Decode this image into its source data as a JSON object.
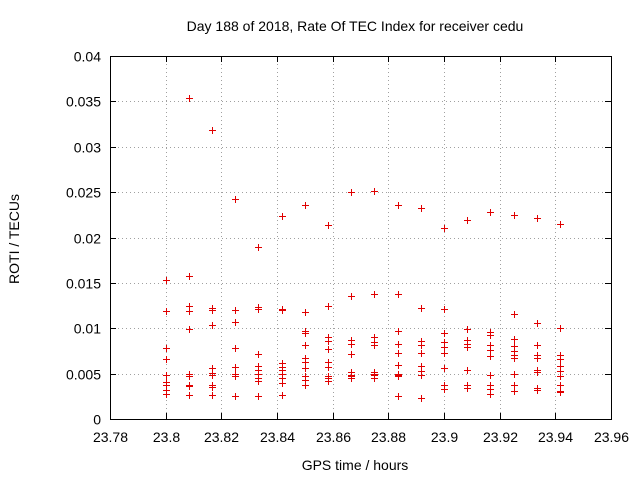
{
  "chart_data": {
    "type": "scatter",
    "title": "Day 188 of 2018, Rate Of TEC Index for receiver cedu",
    "xlabel": "GPS time / hours",
    "ylabel": "ROTI / TECUs",
    "xlim": [
      23.78,
      23.96
    ],
    "ylim": [
      0,
      0.04
    ],
    "xticks": [
      "23.78",
      "23.8",
      "23.82",
      "23.84",
      "23.86",
      "23.88",
      "23.9",
      "23.92",
      "23.94",
      "23.96"
    ],
    "yticks": [
      "0",
      "0.005",
      "0.01",
      "0.015",
      "0.02",
      "0.025",
      "0.03",
      "0.035",
      "0.04"
    ],
    "grid": true,
    "marker": "+",
    "color": "#e00000",
    "series": [
      {
        "x": 23.8,
        "y": [
          0.0153,
          0.0119,
          0.0078,
          0.0066,
          0.0048,
          0.0041,
          0.0037,
          0.0032,
          0.0027
        ]
      },
      {
        "x": 23.8083,
        "y": [
          0.0354,
          0.0158,
          0.0125,
          0.0119,
          0.0099,
          0.005,
          0.0047,
          0.0038,
          0.0036,
          0.0026
        ]
      },
      {
        "x": 23.8167,
        "y": [
          0.0318,
          0.0122,
          0.012,
          0.0104,
          0.0056,
          0.0051,
          0.0049,
          0.0037,
          0.0035,
          0.0026
        ]
      },
      {
        "x": 23.825,
        "y": [
          0.0242,
          0.012,
          0.0107,
          0.0078,
          0.0057,
          0.005,
          0.0047,
          0.0025
        ]
      },
      {
        "x": 23.8333,
        "y": [
          0.019,
          0.0123,
          0.0121,
          0.0072,
          0.0058,
          0.0054,
          0.005,
          0.0045,
          0.0042,
          0.0025
        ]
      },
      {
        "x": 23.8417,
        "y": [
          0.0224,
          0.0121,
          0.012,
          0.0062,
          0.0057,
          0.0054,
          0.005,
          0.0045,
          0.004,
          0.0026
        ]
      },
      {
        "x": 23.85,
        "y": [
          0.0236,
          0.0118,
          0.0097,
          0.0095,
          0.0082,
          0.0067,
          0.0063,
          0.0056,
          0.0047,
          0.0043,
          0.0038
        ]
      },
      {
        "x": 23.8583,
        "y": [
          0.0214,
          0.0124,
          0.009,
          0.0086,
          0.0077,
          0.0063,
          0.0057,
          0.0047,
          0.0045,
          0.0042
        ]
      },
      {
        "x": 23.8667,
        "y": [
          0.025,
          0.0135,
          0.0087,
          0.0083,
          0.0072,
          0.0052,
          0.0049,
          0.0047,
          0.0045
        ]
      },
      {
        "x": 23.875,
        "y": [
          0.0251,
          0.0138,
          0.009,
          0.0085,
          0.0081,
          0.0052,
          0.005,
          0.0048,
          0.0045
        ]
      },
      {
        "x": 23.8833,
        "y": [
          0.0236,
          0.0138,
          0.0097,
          0.0083,
          0.0073,
          0.0059,
          0.005,
          0.0049,
          0.0047,
          0.0025
        ]
      },
      {
        "x": 23.8917,
        "y": [
          0.0232,
          0.0122,
          0.0086,
          0.0082,
          0.0073,
          0.0058,
          0.0053,
          0.0049,
          0.0048,
          0.0023
        ]
      },
      {
        "x": 23.9,
        "y": [
          0.0211,
          0.0121,
          0.0095,
          0.0085,
          0.0079,
          0.0073,
          0.0056,
          0.0037,
          0.0033
        ]
      },
      {
        "x": 23.9083,
        "y": [
          0.0219,
          0.0099,
          0.0087,
          0.0083,
          0.0079,
          0.0054,
          0.0037,
          0.0034
        ]
      },
      {
        "x": 23.9167,
        "y": [
          0.0228,
          0.0096,
          0.0093,
          0.0081,
          0.0076,
          0.0069,
          0.0048,
          0.0038,
          0.0033,
          0.0028
        ]
      },
      {
        "x": 23.925,
        "y": [
          0.0225,
          0.0116,
          0.0088,
          0.008,
          0.0075,
          0.0071,
          0.0067,
          0.005,
          0.0037,
          0.0031
        ]
      },
      {
        "x": 23.9333,
        "y": [
          0.0221,
          0.0106,
          0.0081,
          0.007,
          0.0067,
          0.0054,
          0.0052,
          0.0034,
          0.0032
        ]
      },
      {
        "x": 23.9417,
        "y": [
          0.0215,
          0.01,
          0.0071,
          0.0066,
          0.0058,
          0.0053,
          0.0047,
          0.0038,
          0.0031,
          0.003
        ]
      }
    ]
  }
}
